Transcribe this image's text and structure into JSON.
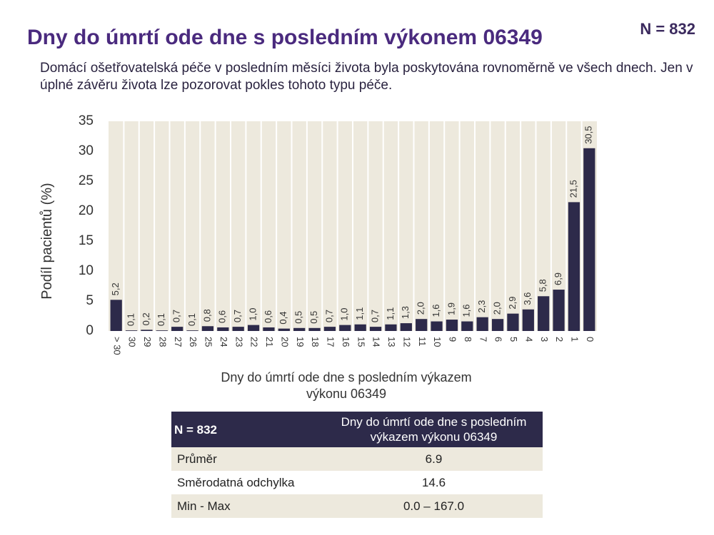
{
  "chart_data": {
    "type": "bar",
    "title": "Dny do úmrtí ode dne s posledním výkonem 06349",
    "subtitle": "Domácí ošetřovatelská péče v posledním měsíci života byla poskytována rovnoměrně ve všech dnech. Jen v úplné závěru života lze pozorovat pokles tohoto typu péče.",
    "xlabel": "Dny do úmrtí ode dne s posledním výkazem výkonu 06349",
    "ylabel": "Podíl pacientů (%)",
    "categories": [
      "> 30",
      "30",
      "29",
      "28",
      "27",
      "26",
      "25",
      "24",
      "23",
      "22",
      "21",
      "20",
      "19",
      "18",
      "17",
      "16",
      "15",
      "14",
      "13",
      "12",
      "11",
      "10",
      "9",
      "8",
      "7",
      "6",
      "5",
      "4",
      "3",
      "2",
      "1",
      "0"
    ],
    "values": [
      5.2,
      0.1,
      0.2,
      0.1,
      0.7,
      0.1,
      0.8,
      0.6,
      0.7,
      1.0,
      0.6,
      0.4,
      0.5,
      0.5,
      0.7,
      1.0,
      1.1,
      0.7,
      1.1,
      1.3,
      2.0,
      1.6,
      1.9,
      1.6,
      2.3,
      2.0,
      2.9,
      3.6,
      5.8,
      6.9,
      21.5,
      30.5
    ],
    "value_labels": [
      "5,2",
      "0,1",
      "0,2",
      "0,1",
      "0,7",
      "0,1",
      "0,8",
      "0,6",
      "0,7",
      "1,0",
      "0,6",
      "0,4",
      "0,5",
      "0,5",
      "0,7",
      "1,0",
      "1,1",
      "0,7",
      "1,1",
      "1,3",
      "2,0",
      "1,6",
      "1,9",
      "1,6",
      "2,3",
      "2,0",
      "2,9",
      "3,6",
      "5,8",
      "6,9",
      "21,5",
      "30,5"
    ],
    "color": "#2d2a4a",
    "ylim": [
      0,
      35
    ],
    "yticks": [
      0,
      5,
      10,
      15,
      20,
      25,
      30,
      35
    ]
  },
  "header": {
    "n_label": "N = 832"
  },
  "table": {
    "header": [
      "N = 832",
      "Dny do úmrtí ode dne s posledním výkazem výkonu 06349"
    ],
    "rows": [
      [
        "Průměr",
        "6.9"
      ],
      [
        "Směrodatná odchylka",
        "14.6"
      ],
      [
        "Min - Max",
        "0.0 – 167.0"
      ]
    ]
  }
}
